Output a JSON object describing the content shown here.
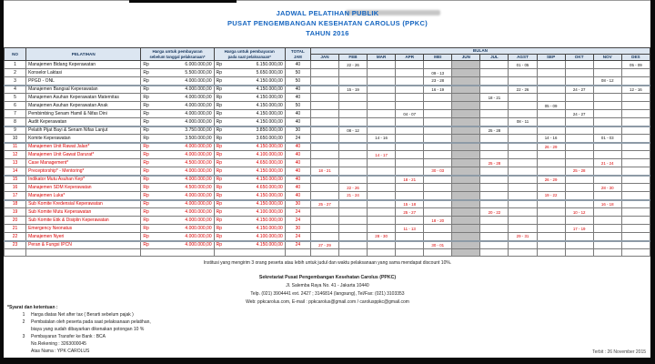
{
  "title": {
    "line1": "JADWAL PELATIHAN PUBLIK",
    "line2": "PUSAT PENGEMBANGAN KESEHATAN CAROLUS (PPKC)",
    "line3": "TAHUN 2016"
  },
  "colors": {
    "title_blue": "#1565c0",
    "header_bg": "#dce6f1",
    "header_text": "#17375e",
    "red_row": "#d90000",
    "jun_shade": "#bfbfbf"
  },
  "table": {
    "headers": {
      "no": "NO",
      "training": "PELATIHAN",
      "price_before_l1": "Harga untuk pembayaran",
      "price_before_l2": "sebelum tanggal pelaksanaan*",
      "price_at_l1": "Harga untuk pembayaran",
      "price_at_l2": "pada saat  pelaksanaan*",
      "total": "TOTAL",
      "jam": "JAM",
      "bulan": "BULAN",
      "currency": "Rp"
    },
    "months": [
      "JAN",
      "FEB",
      "MAR",
      "APR",
      "MEI",
      "JUN",
      "JUL",
      "AGST",
      "SEP",
      "OKT",
      "NOV",
      "DES"
    ],
    "shaded_month": "JUN",
    "rows": [
      {
        "no": "1",
        "name": "Manajemen Bidang Keperawatan",
        "red": false,
        "price_before": "6.000.000,00",
        "price_at": "6.150.000,00",
        "jam": "40",
        "schedule": {
          "FEB": "22 - 26",
          "AGST": "01 - 05",
          "DES": "05 - 09"
        }
      },
      {
        "no": "2",
        "name": "Konselor Laktasi",
        "red": false,
        "price_before": "5.500.000,00",
        "price_at": "5.650.000,00",
        "jam": "50",
        "schedule": {
          "MEI": "09 - 13"
        }
      },
      {
        "no": "3",
        "name": "PPGD - ONL",
        "red": false,
        "price_before": "4.000.000,00",
        "price_at": "4.150.000,00",
        "jam": "50",
        "schedule": {
          "MEI": "23 - 28",
          "NOV": "08 - 12"
        }
      },
      {
        "no": "4",
        "name": "Manajemen Bangsal Keperawatan",
        "red": false,
        "price_before": "4.000.000,00",
        "price_at": "4.150.000,00",
        "jam": "40",
        "schedule": {
          "FEB": "15 - 19",
          "MEI": "16 - 19",
          "AGST": "22 - 26",
          "OKT": "24 - 27",
          "DES": "12 - 16"
        },
        "sep": true
      },
      {
        "no": "5",
        "name": "Manajemen Asuhan Keperawatan Maternitas",
        "red": false,
        "price_before": "4.000.000,00",
        "price_at": "4.150.000,00",
        "jam": "40",
        "schedule": {
          "JUL": "18 - 21"
        }
      },
      {
        "no": "6",
        "name": "Manajemen Asuhan Keperawatan Anak",
        "red": false,
        "price_before": "4.000.000,00",
        "price_at": "4.150.000,00",
        "jam": "50",
        "schedule": {
          "SEP": "05 - 09"
        }
      },
      {
        "no": "7",
        "name": "Pembimbing Senam Hamil & Nifas Dini",
        "red": false,
        "price_before": "4.000.000,00",
        "price_at": "4.150.000,00",
        "jam": "40",
        "schedule": {
          "APR": "04 - 07",
          "OKT": "24 - 27"
        }
      },
      {
        "no": "8",
        "name": "Audit Keperawatan",
        "red": false,
        "price_before": "4.000.000,00",
        "price_at": "4.150.000,00",
        "jam": "40",
        "schedule": {
          "AGST": "08 - 11"
        }
      },
      {
        "no": "9",
        "name": "Pelatih Pijat Bayi & Senam Nifas Lanjut",
        "red": false,
        "price_before": "3.750.000,00",
        "price_at": "3.850.000,00",
        "jam": "30",
        "schedule": {
          "FEB": "08 - 12",
          "JUL": "25 - 28"
        },
        "sep": true
      },
      {
        "no": "10",
        "name": "Komite Keperawatan",
        "red": false,
        "price_before": "3.500.000,00",
        "price_at": "3.650.000,00",
        "jam": "24",
        "schedule": {
          "MAR": "14 - 16",
          "SEP": "14 - 16",
          "NOV": "01 - 03"
        }
      },
      {
        "no": "11",
        "name": "Manajemen Unit Rawat Jalan*",
        "red": true,
        "price_before": "4.000.000,00",
        "price_at": "4.150.000,00",
        "jam": "40",
        "schedule": {
          "SEP": "26 - 29"
        },
        "sep": true
      },
      {
        "no": "12",
        "name": "Manajemen Unit Gawat Darurat*",
        "red": true,
        "price_before": "4.000.000,00",
        "price_at": "4.100.000,00",
        "jam": "40",
        "schedule": {
          "MAR": "14 - 17"
        }
      },
      {
        "no": "13",
        "name": "Case Management*",
        "red": true,
        "price_before": "4.500.000,00",
        "price_at": "4.650.000,00",
        "jam": "40",
        "schedule": {
          "JUL": "25 - 28",
          "NOV": "21 - 24"
        }
      },
      {
        "no": "14",
        "name": "Preceptorship* - Mentoring*",
        "red": true,
        "price_before": "4.000.000,00",
        "price_at": "4.150.000,00",
        "jam": "40",
        "schedule": {
          "JAN": "18 - 21",
          "MEI": "30 - 03",
          "OKT": "25 - 28"
        }
      },
      {
        "no": "15",
        "name": "Indikator Mutu Asuhan Kep*",
        "red": true,
        "price_before": "4.000.000,00",
        "price_at": "4.150.000,00",
        "jam": "40",
        "schedule": {
          "APR": "18 - 21",
          "SEP": "26 - 29"
        },
        "sep": true
      },
      {
        "no": "16",
        "name": "Manajemen SDM Keperawatan",
        "red": true,
        "price_before": "4.500.000,00",
        "price_at": "4.650.000,00",
        "jam": "40",
        "schedule": {
          "FEB": "22 - 26",
          "NOV": "28 - 30"
        }
      },
      {
        "no": "17",
        "name": "Manajemen Luka*",
        "red": true,
        "price_before": "4.000.000,00",
        "price_at": "4.150.000,00",
        "jam": "40",
        "schedule": {
          "FEB": "21 - 24",
          "SEP": "19 - 22"
        }
      },
      {
        "no": "18",
        "name": "Sub Komite Kredensial Keperawatan",
        "red": true,
        "price_before": "4.000.000,00",
        "price_at": "4.150.000,00",
        "jam": "30",
        "schedule": {
          "JAN": "25 - 27",
          "APR": "15 - 18",
          "NOV": "16 - 18"
        },
        "sep": true
      },
      {
        "no": "19",
        "name": "Sub Komite Mutu Keperawatan",
        "red": true,
        "price_before": "4.000.000,00",
        "price_at": "4.100.000,00",
        "jam": "24",
        "schedule": {
          "APR": "25 - 27",
          "JUL": "20 - 22",
          "OKT": "10 - 12"
        }
      },
      {
        "no": "20",
        "name": "Sub Komite Etik & Disiplin Keperawatan",
        "red": true,
        "price_before": "4.000.000,00",
        "price_at": "4.150.000,00",
        "jam": "24",
        "schedule": {
          "MEI": "18 - 20"
        }
      },
      {
        "no": "21",
        "name": "Emergency Neonatus",
        "red": true,
        "price_before": "4.000.000,00",
        "price_at": "4.150.000,00",
        "jam": "30",
        "schedule": {
          "APR": "11 - 13",
          "OKT": "17 - 19"
        }
      },
      {
        "no": "22",
        "name": "Manajemen Nyeri",
        "red": true,
        "price_before": "4.000.000,00",
        "price_at": "4.100.000,00",
        "jam": "24",
        "schedule": {
          "MAR": "28 - 30",
          "AGST": "29 - 31"
        }
      },
      {
        "no": "23",
        "name": "Peran & Fungsi IPCN",
        "red": true,
        "price_before": "4.000.000,00",
        "price_at": "4.150.000,00",
        "jam": "24",
        "schedule": {
          "JAN": "27 - 29",
          "MEI": "30 - 01"
        },
        "sep": true
      }
    ]
  },
  "discount_note": "Institusi yang mengirim  3 orang peserta atau lebih untuk judul dan waktu pelaksanaan yang sama  mendapat discount 10%.",
  "footer": {
    "line1": "Sekretariat Pusat  Pengembangan Kesehatan Carolus (PPKC)",
    "line2": "Jl. Salemba Raya No. 41 - Jakarta 10440",
    "line3": "Telp. (021) 3904441 ext. 2427 ; 3146814 (langsung), Tel/Fax: (021) 3103353",
    "line4": "Web: ppkcarolus.com,  E-mail : ppkcarolus@gmail.com / carolusppkc@gmail.com"
  },
  "notes": {
    "heading": "*Syarat dan ketentuan :",
    "items": [
      {
        "num": "1",
        "text": "Harga  diatas Net after tax  ( Berarti sebelum pajak )"
      },
      {
        "num": "2",
        "text": "Pembatalan oleh peserta pada saat  pelaksanaan  pelatihan,"
      },
      {
        "num": "",
        "text": "biaya yang  sudah dibayarkan dikenakan  potongan  10 %"
      },
      {
        "num": "3",
        "text": "Pembayaran Transfer ke Bank : BCA"
      },
      {
        "num": "",
        "text": "No.Rekening    :  3263000045"
      },
      {
        "num": "",
        "text": "Atas Nama      :  YPK  CAROLUS"
      }
    ]
  },
  "print_date": "Terbit :  26 November  2015"
}
